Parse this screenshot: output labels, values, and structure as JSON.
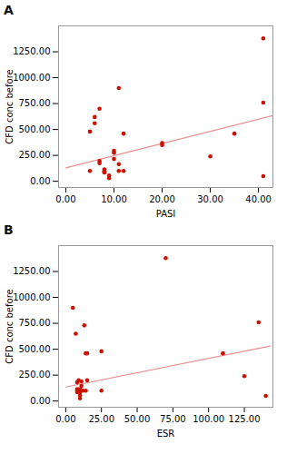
{
  "chart_data": [
    {
      "type": "scatter",
      "title": "A",
      "xlabel": "PASI",
      "ylabel": "CFD conc before",
      "series": [
        {
          "type": "scatter",
          "color": "#cc1100",
          "x": [
            5,
            5,
            6,
            6,
            7,
            7,
            7,
            8,
            8,
            8,
            8,
            9,
            9,
            10,
            10,
            10,
            11,
            11,
            11,
            12,
            12,
            20,
            20,
            30,
            35,
            41,
            41,
            41
          ],
          "values": [
            480,
            100,
            620,
            560,
            700,
            175,
            195,
            90,
            100,
            115,
            85,
            30,
            55,
            295,
            275,
            215,
            900,
            165,
            100,
            460,
            100,
            370,
            350,
            240,
            460,
            1380,
            760,
            50
          ]
        },
        {
          "type": "line",
          "color": "#e89090",
          "x": [
            0,
            43
          ],
          "values": [
            130,
            635
          ]
        }
      ],
      "xlim": [
        -1.5,
        43
      ],
      "ylim": [
        -60,
        1500
      ],
      "xticks": [
        {
          "value": 0,
          "label": "0.00"
        },
        {
          "value": 10,
          "label": "10.00"
        },
        {
          "value": 20,
          "label": "20.00"
        },
        {
          "value": 30,
          "label": "30.00"
        },
        {
          "value": 40,
          "label": "40.00"
        }
      ],
      "yticks": [
        {
          "value": 0,
          "label": "0.00"
        },
        {
          "value": 250,
          "label": "250.00"
        },
        {
          "value": 500,
          "label": "500.00"
        },
        {
          "value": 750,
          "label": "750.00"
        },
        {
          "value": 1000,
          "label": "1000.00"
        },
        {
          "value": 1250,
          "label": "1250.00"
        }
      ]
    },
    {
      "type": "scatter",
      "title": "B",
      "xlabel": "ESR",
      "ylabel": "CFD conc before",
      "series": [
        {
          "type": "scatter",
          "color": "#cc1100",
          "x": [
            5,
            7,
            8,
            8,
            8,
            8,
            9,
            9,
            10,
            10,
            10,
            10,
            10,
            11,
            11,
            12,
            13,
            14,
            14,
            15,
            15,
            25,
            25,
            70,
            110,
            125,
            135,
            140
          ],
          "values": [
            900,
            650,
            180,
            100,
            115,
            85,
            200,
            110,
            90,
            115,
            85,
            25,
            55,
            190,
            145,
            100,
            730,
            460,
            100,
            460,
            200,
            100,
            480,
            1380,
            460,
            240,
            760,
            50
          ]
        },
        {
          "type": "line",
          "color": "#e89090",
          "x": [
            0,
            143
          ],
          "values": [
            135,
            530
          ]
        }
      ],
      "xlim": [
        -5,
        145
      ],
      "ylim": [
        -60,
        1500
      ],
      "xticks": [
        {
          "value": 0,
          "label": "0.00"
        },
        {
          "value": 25,
          "label": "25.00"
        },
        {
          "value": 50,
          "label": "50.00"
        },
        {
          "value": 75,
          "label": "75.00"
        },
        {
          "value": 100,
          "label": "100.00"
        },
        {
          "value": 125,
          "label": "125.00"
        }
      ],
      "yticks": [
        {
          "value": 0,
          "label": "0.00"
        },
        {
          "value": 250,
          "label": "250.00"
        },
        {
          "value": 500,
          "label": "500.00"
        },
        {
          "value": 750,
          "label": "750.00"
        },
        {
          "value": 1000,
          "label": "1000.00"
        },
        {
          "value": 1250,
          "label": "1250.00"
        }
      ]
    }
  ]
}
